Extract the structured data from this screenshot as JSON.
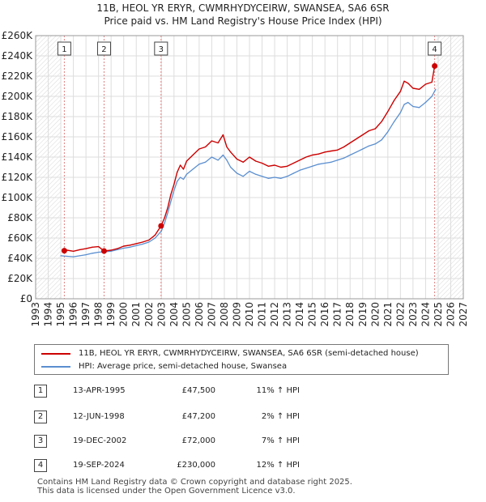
{
  "chart_data": {
    "type": "line",
    "title": "11B, HEOL YR ERYR, CWMRHYDYCEIRW, SWANSEA, SA6 6SR",
    "subtitle": "Price paid vs. HM Land Registry's House Price Index (HPI)",
    "xlabel": "",
    "ylabel": "",
    "xlim": [
      1993,
      2027
    ],
    "ylim": [
      0,
      260000
    ],
    "x_ticks": [
      "1993",
      "1994",
      "1995",
      "1996",
      "1997",
      "1998",
      "1999",
      "2000",
      "2001",
      "2002",
      "2003",
      "2004",
      "2005",
      "2006",
      "2007",
      "2008",
      "2009",
      "2010",
      "2011",
      "2012",
      "2013",
      "2014",
      "2015",
      "2016",
      "2017",
      "2018",
      "2019",
      "2020",
      "2021",
      "2022",
      "2023",
      "2024",
      "2025",
      "2026",
      "2027"
    ],
    "y_ticks": [
      "£0",
      "£20K",
      "£40K",
      "£60K",
      "£80K",
      "£100K",
      "£120K",
      "£140K",
      "£160K",
      "£180K",
      "£200K",
      "£220K",
      "£240K",
      "£260K"
    ],
    "y_tick_values": [
      0,
      20000,
      40000,
      60000,
      80000,
      100000,
      120000,
      140000,
      160000,
      180000,
      200000,
      220000,
      240000,
      260000
    ],
    "grid": true,
    "series": [
      {
        "name": "11B, HEOL YR ERYR, CWMRHYDYCEIRW, SWANSEA, SA6 6SR (semi-detached house)",
        "color": "#cc0000",
        "x": [
          1995.28,
          1995.5,
          1996.0,
          1996.5,
          1997.0,
          1997.5,
          1998.0,
          1998.44,
          1999.0,
          1999.5,
          2000.0,
          2000.5,
          2001.0,
          2001.5,
          2002.0,
          2002.5,
          2002.97,
          2003.25,
          2003.5,
          2003.75,
          2004.0,
          2004.25,
          2004.5,
          2004.75,
          2005.0,
          2005.5,
          2006.0,
          2006.5,
          2007.0,
          2007.5,
          2007.9,
          2008.2,
          2008.5,
          2009.0,
          2009.5,
          2010.0,
          2010.5,
          2011.0,
          2011.5,
          2012.0,
          2012.5,
          2013.0,
          2013.5,
          2014.0,
          2014.5,
          2015.0,
          2015.5,
          2016.0,
          2016.5,
          2017.0,
          2017.5,
          2018.0,
          2018.5,
          2019.0,
          2019.5,
          2020.0,
          2020.5,
          2021.0,
          2021.5,
          2022.0,
          2022.3,
          2022.6,
          2023.0,
          2023.5,
          2024.0,
          2024.5,
          2024.72
        ],
        "values": [
          47500,
          48000,
          47000,
          48500,
          49500,
          51000,
          51500,
          47200,
          48000,
          49500,
          52000,
          53000,
          54500,
          56000,
          58000,
          63000,
          72000,
          80000,
          90000,
          103000,
          113000,
          125000,
          132000,
          128000,
          136000,
          142000,
          148000,
          150000,
          156000,
          154000,
          162000,
          150000,
          145000,
          138000,
          135000,
          140000,
          136000,
          134000,
          131000,
          132000,
          130000,
          131000,
          134000,
          137000,
          140000,
          142000,
          143000,
          145000,
          146000,
          147000,
          150000,
          154000,
          158000,
          162000,
          166000,
          168000,
          175000,
          185000,
          196000,
          205000,
          215000,
          213000,
          208000,
          207000,
          212000,
          214000,
          230000
        ]
      },
      {
        "name": "HPI: Average price, semi-detached house, Swansea",
        "color": "#5b8fd0",
        "x": [
          1995.0,
          1995.5,
          1996.0,
          1996.5,
          1997.0,
          1997.5,
          1998.0,
          1998.5,
          1999.0,
          1999.5,
          2000.0,
          2000.5,
          2001.0,
          2001.5,
          2002.0,
          2002.5,
          2003.0,
          2003.25,
          2003.5,
          2003.75,
          2004.0,
          2004.25,
          2004.5,
          2004.75,
          2005.0,
          2005.5,
          2006.0,
          2006.5,
          2007.0,
          2007.5,
          2007.9,
          2008.2,
          2008.5,
          2009.0,
          2009.5,
          2010.0,
          2010.5,
          2011.0,
          2011.5,
          2012.0,
          2012.5,
          2013.0,
          2013.5,
          2014.0,
          2014.5,
          2015.0,
          2015.5,
          2016.0,
          2016.5,
          2017.0,
          2017.5,
          2018.0,
          2018.5,
          2019.0,
          2019.5,
          2020.0,
          2020.5,
          2021.0,
          2021.5,
          2022.0,
          2022.3,
          2022.6,
          2023.0,
          2023.5,
          2024.0,
          2024.5,
          2024.8
        ],
        "values": [
          42500,
          42000,
          41500,
          42500,
          43500,
          45000,
          46000,
          46500,
          47000,
          48500,
          50000,
          51000,
          52500,
          54000,
          56000,
          60000,
          67000,
          75000,
          85000,
          96000,
          107000,
          116000,
          120000,
          118000,
          123000,
          128000,
          133000,
          135000,
          140000,
          137000,
          142000,
          137000,
          130000,
          124000,
          121000,
          126000,
          123000,
          121000,
          119000,
          120000,
          119000,
          121000,
          124000,
          127000,
          129000,
          131000,
          133000,
          134000,
          135000,
          137000,
          139000,
          142000,
          145000,
          148000,
          151000,
          153000,
          157000,
          165000,
          175000,
          184000,
          192000,
          194000,
          190000,
          189000,
          194000,
          200000,
          207000
        ]
      }
    ],
    "sales": [
      {
        "label": "1",
        "x": 1995.28,
        "value": 47500
      },
      {
        "label": "2",
        "x": 1998.44,
        "value": 47200
      },
      {
        "label": "3",
        "x": 2002.97,
        "value": 72000
      },
      {
        "label": "4",
        "x": 2024.72,
        "value": 230000
      }
    ],
    "hatched_ranges": [
      [
        1993,
        1995.0
      ],
      [
        2024.8,
        2027
      ]
    ]
  },
  "legend": {
    "property_label": "11B, HEOL YR ERYR, CWMRHYDYCEIRW, SWANSEA, SA6 6SR (semi-detached house)",
    "hpi_label": "HPI: Average price, semi-detached house, Swansea"
  },
  "sales_table": [
    {
      "num": "1",
      "date": "13-APR-1995",
      "price": "£47,500",
      "hpi": "11% ↑ HPI"
    },
    {
      "num": "2",
      "date": "12-JUN-1998",
      "price": "£47,200",
      "hpi": "2% ↑ HPI"
    },
    {
      "num": "3",
      "date": "19-DEC-2002",
      "price": "£72,000",
      "hpi": "7% ↑ HPI"
    },
    {
      "num": "4",
      "date": "19-SEP-2024",
      "price": "£230,000",
      "hpi": "12% ↑ HPI"
    }
  ],
  "footer": {
    "line1": "Contains HM Land Registry data © Crown copyright and database right 2025.",
    "line2": "This data is licensed under the Open Government Licence v3.0."
  }
}
